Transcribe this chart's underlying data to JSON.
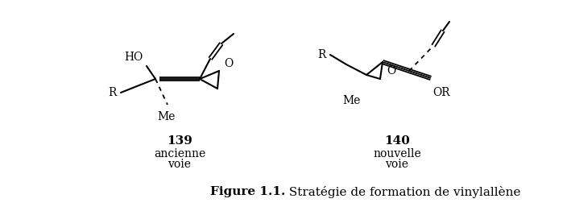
{
  "fig_width": 7.09,
  "fig_height": 2.57,
  "dpi": 100,
  "bg_color": "#ffffff",
  "caption_bold": "Figure 1.1.",
  "caption_normal": " Stratégie de formation de vinylallène",
  "label_139": "139",
  "label_140": "140",
  "label_ancienne_1": "ancienne",
  "label_ancienne_2": "voie",
  "label_nouvelle_1": "nouvelle",
  "label_nouvelle_2": "voie",
  "font_size_caption": 11,
  "font_size_labels": 10,
  "font_size_atoms": 10,
  "line_color": "#000000",
  "line_width": 1.5,
  "dashed_lw": 1.3
}
